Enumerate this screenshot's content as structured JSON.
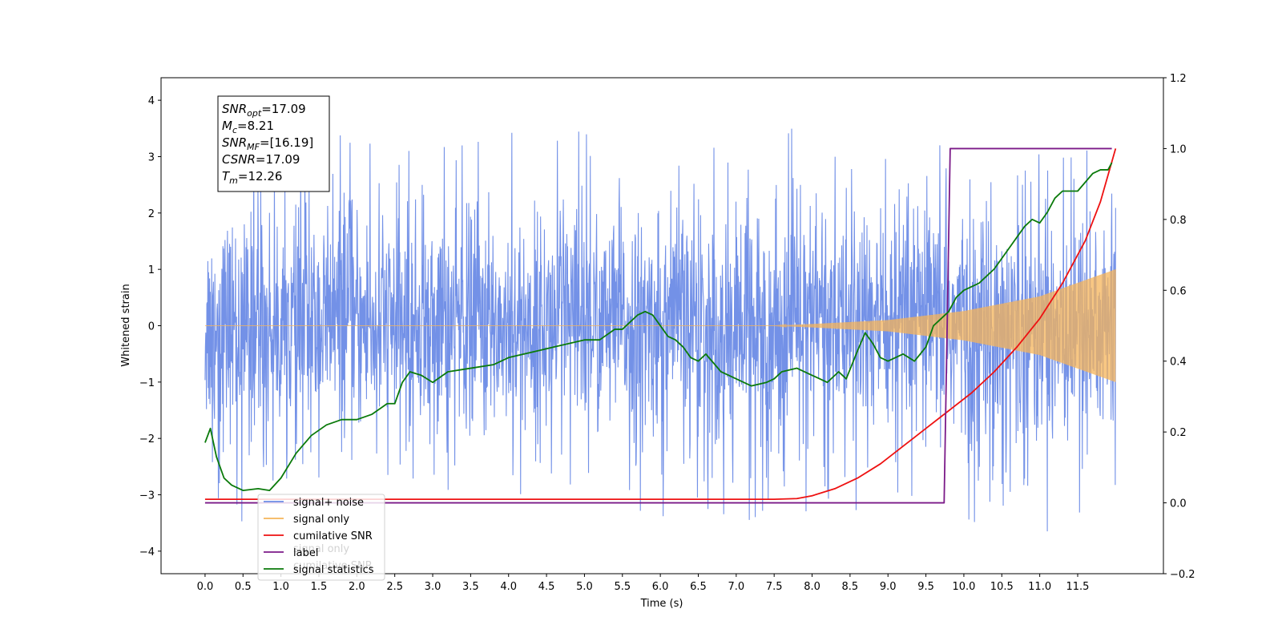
{
  "chart_data": {
    "type": "line",
    "xlabel": "Time (s)",
    "ylabel": "Whitened strain",
    "xlim": [
      -0.58,
      12.63
    ],
    "ylim": [
      -4.4,
      4.4
    ],
    "y2lim": [
      -0.2,
      1.2
    ],
    "x_ticks": [
      "0.0",
      "0.5",
      "1.0",
      "1.5",
      "2.0",
      "2.5",
      "3.0",
      "3.5",
      "4.0",
      "4.5",
      "5.0",
      "5.5",
      "6.0",
      "6.5",
      "7.0",
      "7.5",
      "8.0",
      "8.5",
      "9.0",
      "9.5",
      "10.0",
      "10.5",
      "11.0",
      "11.5"
    ],
    "y_ticks": [
      "4",
      "3",
      "2",
      "1",
      "0",
      "−1",
      "−2",
      "−3",
      "−4"
    ],
    "y2_ticks": [
      "1.2",
      "1.0",
      "0.8",
      "0.6",
      "0.4",
      "0.2",
      "0.0",
      "−0.2"
    ],
    "info_box": [
      {
        "main": "SNR",
        "sub": "opt",
        "value": "=17.09"
      },
      {
        "main": "M",
        "sub": "c",
        "value": "=8.21"
      },
      {
        "main": "SNR",
        "sub": "MF",
        "value": "=[16.19]"
      },
      {
        "main": "CSNR",
        "sub": "",
        "value": "=17.09"
      },
      {
        "main": "T",
        "sub": "m",
        "value": "=12.26"
      }
    ],
    "legend": {
      "placement": "lower-left",
      "entries": [
        "signal+ noise",
        "signal only",
        "cumilative SNR",
        "label",
        "signal statistics"
      ],
      "ghost_text": [
        "signal only",
        "cumilative SNR"
      ]
    },
    "series": [
      {
        "name": "signal+ noise",
        "color": "#6b8be6",
        "kind": "noise",
        "x_range": [
          0.0,
          12.0
        ],
        "band": [
          [
            0,
            1.5
          ],
          [
            6,
            1.5
          ],
          [
            9,
            1.6
          ],
          [
            12,
            1.8
          ]
        ],
        "spike_range": [
          -3.8,
          3.5
        ]
      },
      {
        "name": "signal only",
        "color": "#f5b45a",
        "kind": "chirp",
        "x_range": [
          0.0,
          12.0
        ],
        "envelope": [
          [
            0,
            0.0
          ],
          [
            7.5,
            0.0
          ],
          [
            8.0,
            0.03
          ],
          [
            9.0,
            0.1
          ],
          [
            10.0,
            0.26
          ],
          [
            11.0,
            0.52
          ],
          [
            12.0,
            1.0
          ]
        ]
      },
      {
        "name": "cumilative SNR",
        "color": "#ee1111",
        "axis": "right",
        "x": [
          0.0,
          7.5,
          7.8,
          8.0,
          8.3,
          8.6,
          8.9,
          9.2,
          9.5,
          9.8,
          10.1,
          10.4,
          10.7,
          11.0,
          11.3,
          11.6,
          11.8,
          12.0
        ],
        "y": [
          0.01,
          0.01,
          0.012,
          0.02,
          0.04,
          0.07,
          0.11,
          0.16,
          0.21,
          0.26,
          0.31,
          0.37,
          0.44,
          0.52,
          0.62,
          0.74,
          0.85,
          1.0
        ]
      },
      {
        "name": "label",
        "color": "#7b1a88",
        "axis": "right",
        "x": [
          0.0,
          9.74,
          9.82,
          11.95
        ],
        "y": [
          0.0,
          0.0,
          1.0,
          1.0
        ]
      },
      {
        "name": "signal statistics",
        "color": "#0a7a0a",
        "axis": "right",
        "x": [
          0.0,
          0.07,
          0.15,
          0.25,
          0.35,
          0.5,
          0.7,
          0.85,
          1.0,
          1.2,
          1.4,
          1.6,
          1.8,
          2.0,
          2.2,
          2.4,
          2.5,
          2.6,
          2.7,
          2.85,
          3.0,
          3.2,
          3.5,
          3.8,
          4.0,
          4.2,
          4.4,
          4.6,
          4.8,
          5.0,
          5.2,
          5.4,
          5.5,
          5.6,
          5.7,
          5.8,
          5.9,
          6.0,
          6.1,
          6.2,
          6.3,
          6.4,
          6.5,
          6.6,
          6.8,
          7.0,
          7.2,
          7.4,
          7.5,
          7.6,
          7.8,
          8.0,
          8.2,
          8.35,
          8.45,
          8.6,
          8.7,
          8.8,
          8.9,
          9.0,
          9.2,
          9.35,
          9.5,
          9.6,
          9.7,
          9.8,
          9.9,
          10.0,
          10.2,
          10.4,
          10.6,
          10.8,
          10.9,
          11.0,
          11.1,
          11.2,
          11.3,
          11.5,
          11.7,
          11.8,
          11.9,
          11.95
        ],
        "y": [
          0.17,
          0.21,
          0.13,
          0.07,
          0.05,
          0.035,
          0.04,
          0.035,
          0.07,
          0.14,
          0.19,
          0.22,
          0.235,
          0.235,
          0.25,
          0.28,
          0.28,
          0.34,
          0.37,
          0.36,
          0.34,
          0.37,
          0.38,
          0.39,
          0.41,
          0.42,
          0.43,
          0.44,
          0.45,
          0.46,
          0.46,
          0.49,
          0.49,
          0.51,
          0.53,
          0.54,
          0.53,
          0.5,
          0.47,
          0.46,
          0.44,
          0.41,
          0.4,
          0.42,
          0.37,
          0.35,
          0.33,
          0.34,
          0.35,
          0.37,
          0.38,
          0.36,
          0.34,
          0.37,
          0.35,
          0.43,
          0.48,
          0.45,
          0.41,
          0.4,
          0.42,
          0.4,
          0.44,
          0.5,
          0.52,
          0.54,
          0.58,
          0.6,
          0.62,
          0.66,
          0.72,
          0.78,
          0.8,
          0.79,
          0.82,
          0.86,
          0.88,
          0.88,
          0.93,
          0.94,
          0.94,
          0.96
        ]
      }
    ]
  }
}
